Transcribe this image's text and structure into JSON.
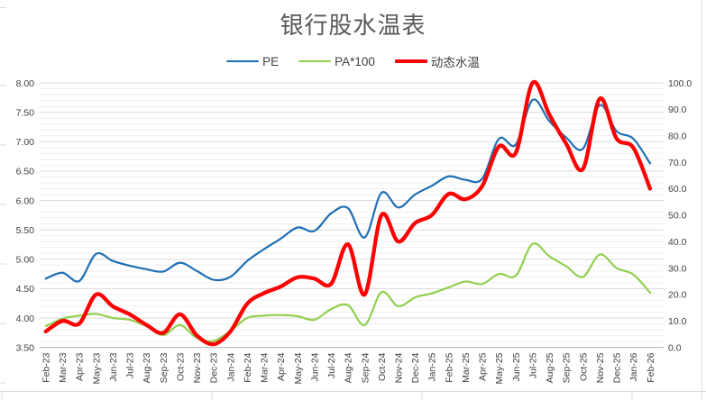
{
  "page": {
    "background": "#FFFFFF"
  },
  "chart": {
    "title": "银行股水温表",
    "title_color": "#595959",
    "text_color": "#404040",
    "axis_line_color": "#BFBFBF",
    "worksheet_line_color": "#DCDCDC"
  },
  "chart_data": {
    "type": "line",
    "title": "银行股水温表",
    "smoothed": true,
    "legend_position": "top",
    "categories": [
      "Feb-23",
      "Mar-23",
      "Apr-23",
      "May-23",
      "Jun-23",
      "Jul-23",
      "Aug-23",
      "Sep-23",
      "Oct-23",
      "Nov-23",
      "Dec-23",
      "Jan-24",
      "Feb-24",
      "Mar-24",
      "Apr-24",
      "May-24",
      "Jun-24",
      "Jul-24",
      "Aug-24",
      "Sep-24",
      "Oct-24",
      "Nov-24",
      "Dec-24",
      "Jan-25",
      "Feb-25",
      "Mar-25",
      "Apr-25",
      "May-25",
      "Jun-25",
      "Jul-25",
      "Aug-25",
      "Sep-25",
      "Oct-25",
      "Nov-25",
      "Dec-25",
      "Jan-26",
      "Feb-26"
    ],
    "series": [
      {
        "name": "PE",
        "axis": "left",
        "color": "#1F6FB5",
        "width": 2.2,
        "values": [
          4.67,
          4.77,
          4.63,
          5.09,
          4.97,
          4.89,
          4.83,
          4.79,
          4.94,
          4.8,
          4.65,
          4.7,
          4.97,
          5.17,
          5.35,
          5.54,
          5.48,
          5.78,
          5.87,
          5.37,
          6.13,
          5.88,
          6.1,
          6.25,
          6.41,
          6.35,
          6.37,
          7.05,
          6.95,
          7.71,
          7.35,
          7.07,
          6.88,
          7.62,
          7.18,
          7.05,
          6.63
        ]
      },
      {
        "name": "PA*100",
        "axis": "left",
        "color": "#92D050",
        "width": 2.2,
        "values": [
          3.86,
          3.99,
          4.04,
          4.07,
          4.0,
          3.97,
          3.86,
          3.71,
          3.88,
          3.66,
          3.61,
          3.78,
          4.0,
          4.04,
          4.05,
          4.03,
          3.97,
          4.15,
          4.22,
          3.88,
          4.44,
          4.2,
          4.35,
          4.42,
          4.52,
          4.62,
          4.58,
          4.75,
          4.72,
          5.26,
          5.05,
          4.88,
          4.7,
          5.08,
          4.85,
          4.74,
          4.43
        ]
      },
      {
        "name": "动态水温",
        "axis": "right",
        "color": "#FF0000",
        "width": 4.3,
        "values": [
          6,
          10,
          9,
          20,
          15.5,
          12.5,
          8.5,
          5.5,
          12.5,
          4.5,
          1.2,
          6,
          16.5,
          20.5,
          23,
          26.5,
          26,
          24,
          39,
          20,
          50,
          40,
          47,
          50,
          58,
          56,
          61,
          76,
          73.5,
          100,
          88,
          77,
          67.5,
          94,
          79,
          75.5,
          60
        ]
      }
    ],
    "left_axis": {
      "min": 3.5,
      "max": 8.0,
      "major": 0.5,
      "minor": 0.1,
      "labels": [
        "8.00",
        "7.50",
        "7.00",
        "6.50",
        "6.00",
        "5.50",
        "5.00",
        "4.50",
        "4.00",
        "3.50"
      ]
    },
    "right_axis": {
      "min": 0,
      "max": 100,
      "major": 10,
      "labels": [
        "100.0",
        "90.0",
        "80.0",
        "70.0",
        "60.0",
        "50.0",
        "40.0",
        "30.0",
        "20.0",
        "10.0",
        "0.0"
      ]
    },
    "grid": {
      "major_color": "#D9D9D9",
      "minor_color": "#EFEFEF",
      "minor_on": true
    }
  }
}
